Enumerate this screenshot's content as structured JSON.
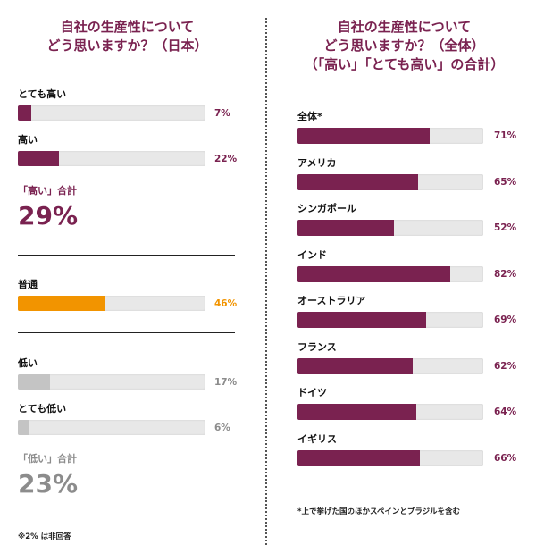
{
  "colors": {
    "accent": "#7a2250",
    "neutral_fill": "#f29400",
    "low_fill": "#c4c4c4",
    "low_text": "#8c8c8c",
    "track": "#e8e8e8"
  },
  "chart_data": [
    {
      "type": "bar",
      "title": "自社の生産性について\nどう思いますか？（日本）",
      "title_lines": [
        "自社の生産性について",
        "どう思いますか？（日本）"
      ],
      "categories": [
        "とても高い",
        "高い",
        "普通",
        "低い",
        "とても低い"
      ],
      "values": [
        7,
        22,
        46,
        17,
        6
      ],
      "value_labels": [
        "7%",
        "22%",
        "46%",
        "17%",
        "6%"
      ],
      "xlim": [
        0,
        100
      ],
      "summaries": {
        "high": {
          "label": "「高い」合計",
          "value": 29,
          "value_label": "29%"
        },
        "low": {
          "label": "「低い」合計",
          "value": 23,
          "value_label": "23%"
        }
      },
      "footnote": "※2% は非回答"
    },
    {
      "type": "bar",
      "title": "自社の生産性について\nどう思いますか？（全体）\n（「高い」「とても高い」の合計）",
      "title_lines": [
        "自社の生産性について",
        "どう思いますか？（全体）",
        "（「高い」「とても高い」の合計）"
      ],
      "categories": [
        "全体*",
        "アメリカ",
        "シンガポール",
        "インド",
        "オーストラリア",
        "フランス",
        "ドイツ",
        "イギリス"
      ],
      "values": [
        71,
        65,
        52,
        82,
        69,
        62,
        64,
        66
      ],
      "value_labels": [
        "71%",
        "65%",
        "52%",
        "82%",
        "69%",
        "62%",
        "64%",
        "66%"
      ],
      "xlim": [
        0,
        100
      ],
      "footnote": "*上で挙げた国のほかスペインとブラジルを含む"
    }
  ]
}
